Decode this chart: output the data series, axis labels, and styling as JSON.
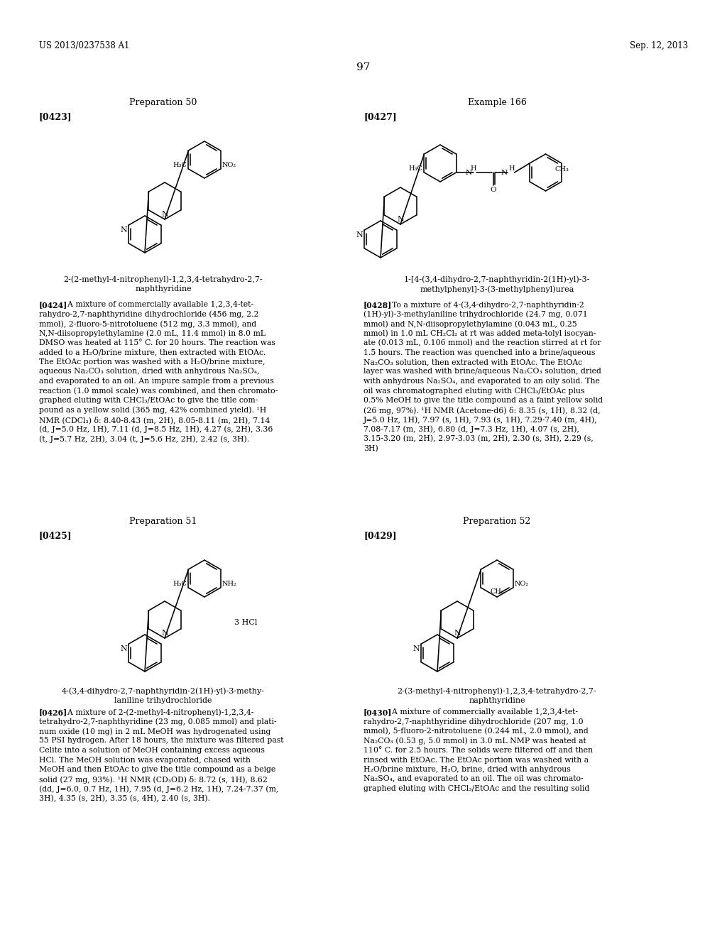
{
  "bg_color": "#ffffff",
  "header_left": "US 2013/0237538 A1",
  "header_right": "Sep. 12, 2013",
  "page_number": "97",
  "prep50_title": "Preparation 50",
  "example166_title": "Example 166",
  "tag423": "[0423]",
  "tag427": "[0427]",
  "compound1_name_line1": "2-(2-methyl-4-nitrophenyl)-1,2,3,4-tetrahydro-2,7-",
  "compound1_name_line2": "naphthyridine",
  "compound2_name_line1": "1-[4-(3,4-dihydro-2,7-naphthyridin-2(1H)-yl)-3-",
  "compound2_name_line2": "methylphenyl]-3-(3-methylphenyl)urea",
  "para424_tag": "[0424]",
  "para424_text": "A mixture of commercially available 1,2,3,4-tet-\nrahydro-2,7-naphthyridine dihydrochloride (456 mg, 2.2\nmmol), 2-fluoro-5-nitrotoluene (512 mg, 3.3 mmol), and\nN,N-diisopropylethylamine (2.0 mL, 11.4 mmol) in 8.0 mL\nDMSO was heated at 115° C. for 20 hours. The reaction was\nadded to a H₂O/brine mixture, then extracted with EtOAc.\nThe EtOAc portion was washed with a H₂O/brine mixture,\naqueous Na₂CO₃ solution, dried with anhydrous Na₂SO₄,\nand evaporated to an oil. An impure sample from a previous\nreaction (1.0 mmol scale) was combined, and then chromato-\ngraphed eluting with CHCl₃/EtOAc to give the title com-\npound as a yellow solid (365 mg, 42% combined yield). ¹H\nNMR (CDCl₃) δ: 8.40-8.43 (m, 2H), 8.05-8.11 (m, 2H), 7.14\n(d, J=5.0 Hz, 1H), 7.11 (d, J=8.5 Hz, 1H), 4.27 (s, 2H), 3.36\n(t, J=5.7 Hz, 2H), 3.04 (t, J=5.6 Hz, 2H), 2.42 (s, 3H).",
  "para428_tag": "[0428]",
  "para428_text": "To a mixture of 4-(3,4-dihydro-2,7-naphthyridin-2\n(1H)-yl)-3-methylaniline trihydrochloride (24.7 mg, 0.071\nmmol) and N,N-diisopropylethylamine (0.043 mL, 0.25\nmmol) in 1.0 mL CH₂Cl₂ at rt was added meta-tolyl isocyan-\nate (0.013 mL, 0.106 mmol) and the reaction stirred at rt for\n1.5 hours. The reaction was quenched into a brine/aqueous\nNa₂CO₃ solution, then extracted with EtOAc. The EtOAc\nlayer was washed with brine/aqueous Na₂CO₃ solution, dried\nwith anhydrous Na₂SO₄, and evaporated to an oily solid. The\noil was chromatographed eluting with CHCl₃/EtOAc plus\n0.5% MeOH to give the title compound as a faint yellow solid\n(26 mg, 97%). ¹H NMR (Acetone-d6) δ: 8.35 (s, 1H), 8.32 (d,\nJ=5.0 Hz, 1H), 7.97 (s, 1H), 7.93 (s, 1H), 7.29-7.40 (m, 4H),\n7.08-7.17 (m, 3H), 6.80 (d, J=7.3 Hz, 1H), 4.07 (s, 2H),\n3.15-3.20 (m, 2H), 2.97-3.03 (m, 2H), 2.30 (s, 3H), 2.29 (s,\n3H)",
  "prep51_title": "Preparation 51",
  "prep52_title": "Preparation 52",
  "tag425": "[0425]",
  "tag429": "[0429]",
  "compound3_name_line1": "4-(3,4-dihydro-2,7-naphthyridin-2(1H)-yl)-3-methy-",
  "compound3_name_line2": "laniline trihydrochloride",
  "compound4_name_line1": "2-(3-methyl-4-nitrophenyl)-1,2,3,4-tetrahydro-2,7-",
  "compound4_name_line2": "naphthyridine",
  "para426_tag": "[0426]",
  "para426_text": "A mixture of 2-(2-methyl-4-nitrophenyl)-1,2,3,4-\ntetrahydro-2,7-naphthyridine (23 mg, 0.085 mmol) and plati-\nnum oxide (10 mg) in 2 mL MeOH was hydrogenated using\n55 PSI hydrogen. After 18 hours, the mixture was filtered past\nCelite into a solution of MeOH containing excess aqueous\nHCl. The MeOH solution was evaporated, chased with\nMeOH and then EtOAc to give the title compound as a beige\nsolid (27 mg, 93%). ¹H NMR (CD₃OD) δ: 8.72 (s, 1H), 8.62\n(dd, J=6.0, 0.7 Hz, 1H), 7.95 (d, J=6.2 Hz, 1H), 7.24-7.37 (m,\n3H), 4.35 (s, 2H), 3.35 (s, 4H), 2.40 (s, 3H).",
  "para430_tag": "[0430]",
  "para430_text": "A mixture of commercially available 1,2,3,4-tet-\nrahydro-2,7-naphthyridine dihydrochloride (207 mg, 1.0\nmmol), 5-fluoro-2-nitrotoluene (0.244 mL, 2.0 mmol), and\nNa₂CO₃ (0.53 g, 5.0 mmol) in 3.0 mL NMP was heated at\n110° C. for 2.5 hours. The solids were filtered off and then\nrinsed with EtOAc. The EtOAc portion was washed with a\nH₂O/brine mixture, H₂O, brine, dried with anhydrous\nNa₂SO₄, and evaporated to an oil. The oil was chromato-\ngraphed eluting with CHCl₃/EtOAc and the resulting solid"
}
